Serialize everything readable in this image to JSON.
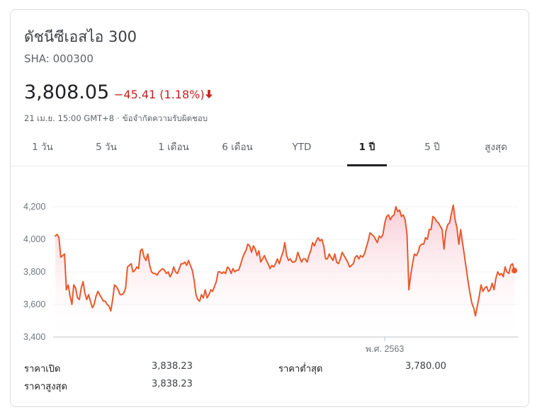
{
  "header": {
    "title": "ดัชนีซีเอสไอ 300",
    "symbol": "SHA: 000300",
    "price": "3,808.05",
    "change": "−45.41 (1.18%)",
    "direction": "down",
    "timestamp": "21 เม.ย. 15:00 GMT+8",
    "separator": "·",
    "disclaimer": "ข้อจำกัดความรับผิดชอบ"
  },
  "tabs": [
    {
      "label": "1 วัน",
      "active": false
    },
    {
      "label": "5 วัน",
      "active": false
    },
    {
      "label": "1 เดือน",
      "active": false
    },
    {
      "label": "6 เดือน",
      "active": false
    },
    {
      "label": "YTD",
      "active": false
    },
    {
      "label": "1 ปี",
      "active": true
    },
    {
      "label": "5 ปี",
      "active": false
    },
    {
      "label": "สูงสุด",
      "active": false
    }
  ],
  "colors": {
    "line": "#e8592c",
    "fill_top": "#f7c6cf",
    "fill_bottom": "#ffffff",
    "down": "#c5221f",
    "grid": "#f1f3f4",
    "baseline": "#bdc1c6"
  },
  "stats": {
    "open_label": "ราคาเปิด",
    "open_value": "3,838.23",
    "high_label": "ราคาสูงสุด",
    "high_value": "3,838.23",
    "low_label": "ราคาต่ำสุด",
    "low_value": "3,780.00"
  },
  "chart_data": {
    "type": "area",
    "title": "",
    "xlabel": "",
    "ylabel": "",
    "ylim": [
      3400,
      4250
    ],
    "yticks": [
      4200,
      4000,
      3800,
      3600,
      3400
    ],
    "ytick_labels": [
      "4,200",
      "4,000",
      "3,800",
      "3,600",
      "3,400"
    ],
    "xticks": [
      {
        "index": 178,
        "label": "พ.ศ. 2563"
      }
    ],
    "grid": true,
    "legend": "none",
    "series": [
      {
        "values": [
          4020,
          4030,
          4010,
          3890,
          3900,
          3910,
          3690,
          3720,
          3650,
          3600,
          3720,
          3700,
          3640,
          3630,
          3700,
          3740,
          3670,
          3630,
          3660,
          3620,
          3580,
          3600,
          3650,
          3680,
          3660,
          3640,
          3620,
          3620,
          3600,
          3590,
          3560,
          3630,
          3720,
          3710,
          3690,
          3660,
          3660,
          3670,
          3700,
          3830,
          3840,
          3850,
          3800,
          3810,
          3830,
          3820,
          3930,
          3940,
          3890,
          3870,
          3910,
          3840,
          3800,
          3790,
          3790,
          3780,
          3800,
          3810,
          3820,
          3810,
          3790,
          3800,
          3770,
          3790,
          3830,
          3800,
          3790,
          3820,
          3850,
          3850,
          3860,
          3840,
          3870,
          3840,
          3810,
          3750,
          3660,
          3630,
          3620,
          3660,
          3640,
          3690,
          3640,
          3660,
          3690,
          3680,
          3710,
          3740,
          3800,
          3800,
          3790,
          3800,
          3790,
          3830,
          3820,
          3790,
          3820,
          3800,
          3810,
          3810,
          3840,
          3880,
          3910,
          3930,
          3970,
          3960,
          3920,
          3960,
          3940,
          3900,
          3930,
          3860,
          3880,
          3900,
          3870,
          3850,
          3820,
          3840,
          3830,
          3850,
          3880,
          3850,
          3890,
          3920,
          3980,
          3900,
          3870,
          3880,
          3860,
          3860,
          3870,
          3920,
          3890,
          3860,
          3880,
          3880,
          3860,
          3900,
          3930,
          3980,
          3960,
          3990,
          4010,
          3990,
          4000,
          3960,
          3880,
          3880,
          3910,
          3890,
          3870,
          3910,
          3860,
          3850,
          3880,
          3920,
          3900,
          3880,
          3860,
          3830,
          3840,
          3850,
          3890,
          3900,
          3880,
          3900,
          3890,
          3910,
          3950,
          3990,
          4040,
          4030,
          4020,
          4000,
          3980,
          4020,
          4010,
          4030,
          4100,
          4140,
          4150,
          4120,
          4140,
          4150,
          4200,
          4170,
          4180,
          4140,
          4150,
          4120,
          4030,
          3690,
          3780,
          3850,
          3910,
          3900,
          3920,
          3960,
          3970,
          3970,
          4010,
          4000,
          4060,
          4060,
          4140,
          4130,
          4110,
          4100,
          4080,
          4060,
          3940,
          4050,
          4090,
          4100,
          4160,
          4210,
          4120,
          4070,
          3970,
          4060,
          3980,
          3900,
          3820,
          3740,
          3670,
          3610,
          3580,
          3530,
          3590,
          3650,
          3720,
          3680,
          3700,
          3710,
          3680,
          3690,
          3730,
          3690,
          3760,
          3800,
          3780,
          3790,
          3770,
          3830,
          3800,
          3790,
          3840,
          3850,
          3808
        ]
      }
    ]
  }
}
